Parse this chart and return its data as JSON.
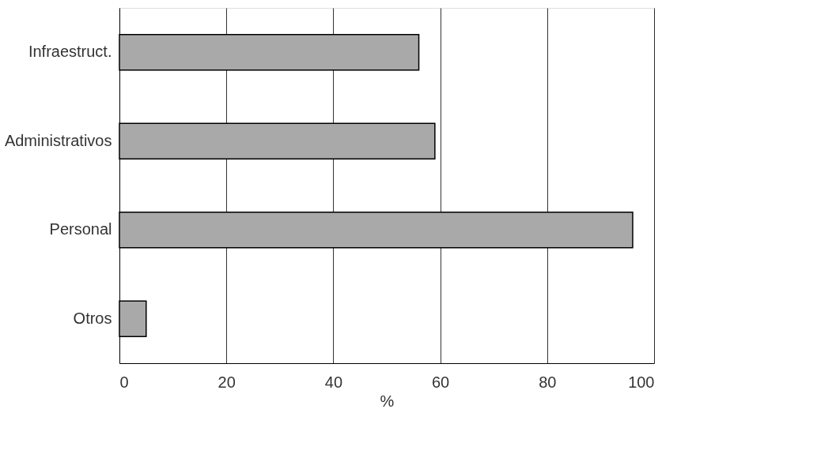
{
  "chart_data": {
    "type": "bar",
    "orientation": "horizontal",
    "xlabel": "%",
    "categories": [
      "Infraestruct.",
      "Administrativos",
      "Personal",
      "Otros"
    ],
    "values": [
      56,
      59,
      96,
      5
    ],
    "color": "#a9a9a9",
    "xlim": [
      0,
      100
    ],
    "xticks": [
      0,
      20,
      40,
      60,
      80,
      100
    ],
    "grid": "x"
  }
}
